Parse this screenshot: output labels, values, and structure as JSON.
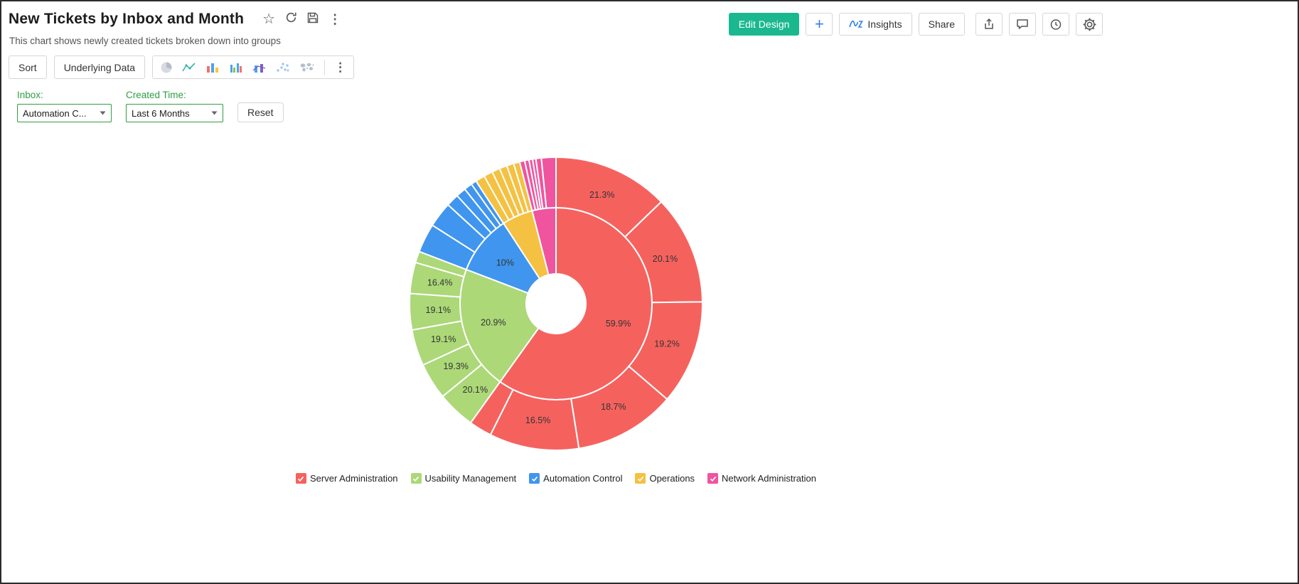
{
  "header": {
    "title": "New Tickets by Inbox and Month",
    "subtitle": "This chart shows newly created tickets broken down into groups",
    "actions": {
      "edit_design": "Edit Design",
      "add": "+",
      "insights": "Insights",
      "share": "Share"
    }
  },
  "toolbar": {
    "sort": "Sort",
    "underlying_data": "Underlying Data"
  },
  "filters": {
    "inbox_label": "Inbox:",
    "inbox_value": "Automation C...",
    "created_label": "Created Time:",
    "created_value": "Last 6 Months",
    "reset": "Reset"
  },
  "legend": [
    {
      "label": "Server Administration",
      "color": "#F5625E"
    },
    {
      "label": "Usability Management",
      "color": "#ACD878"
    },
    {
      "label": "Automation Control",
      "color": "#4095EF"
    },
    {
      "label": "Operations",
      "color": "#F5C142"
    },
    {
      "label": "Network Administration",
      "color": "#F0549F"
    }
  ],
  "colors": {
    "primary_button_green": "#1BB890",
    "link_blue": "#2F80E7",
    "filter_label_green": "#2F9E44"
  },
  "chart_data": {
    "type": "sunburst",
    "title": "New Tickets by Inbox and Month",
    "unit": "%",
    "start_angle_deg": 0,
    "direction": "clockwise",
    "hole_radius": 42,
    "inner_radius": 135,
    "outer_radius": 206,
    "inner_label_radius": 92,
    "outer_label_radius": 166,
    "legend_position": "bottom",
    "groups": [
      {
        "name": "Server Administration",
        "color": "#F5625E",
        "percent": 59.9,
        "label": "59.9%",
        "children": [
          {
            "percent": 21.3,
            "label": "21.3%"
          },
          {
            "percent": 20.1,
            "label": "20.1%"
          },
          {
            "percent": 19.2,
            "label": "19.2%"
          },
          {
            "percent": 18.7,
            "label": "18.7%"
          },
          {
            "percent": 16.5,
            "label": "16.5%"
          },
          {
            "percent": 4.2,
            "label": ""
          }
        ]
      },
      {
        "name": "Usability Management",
        "color": "#ACD878",
        "percent": 20.9,
        "label": "20.9%",
        "children": [
          {
            "percent": 20.1,
            "label": "20.1%"
          },
          {
            "percent": 19.3,
            "label": "19.3%"
          },
          {
            "percent": 19.1,
            "label": "19.1%"
          },
          {
            "percent": 19.1,
            "label": "19.1%"
          },
          {
            "percent": 16.4,
            "label": "16.4%"
          },
          {
            "percent": 6.0,
            "label": ""
          }
        ]
      },
      {
        "name": "Automation Control",
        "color": "#4095EF",
        "percent": 10.0,
        "label": "10%",
        "children": [
          {
            "percent": 32,
            "label": ""
          },
          {
            "percent": 28,
            "label": ""
          },
          {
            "percent": 14,
            "label": ""
          },
          {
            "percent": 11,
            "label": ""
          },
          {
            "percent": 9,
            "label": ""
          },
          {
            "percent": 6,
            "label": ""
          }
        ]
      },
      {
        "name": "Operations",
        "color": "#F5C142",
        "percent": 5.2,
        "label": "",
        "children": [
          {
            "percent": 20,
            "label": ""
          },
          {
            "percent": 19,
            "label": ""
          },
          {
            "percent": 17,
            "label": ""
          },
          {
            "percent": 16,
            "label": ""
          },
          {
            "percent": 15,
            "label": ""
          },
          {
            "percent": 13,
            "label": ""
          }
        ]
      },
      {
        "name": "Network Administration",
        "color": "#F0549F",
        "percent": 4.0,
        "label": "",
        "children": [
          {
            "percent": 14,
            "label": ""
          },
          {
            "percent": 12,
            "label": ""
          },
          {
            "percent": 10,
            "label": ""
          },
          {
            "percent": 9,
            "label": ""
          },
          {
            "percent": 15,
            "label": ""
          },
          {
            "percent": 40,
            "label": ""
          }
        ]
      }
    ]
  }
}
